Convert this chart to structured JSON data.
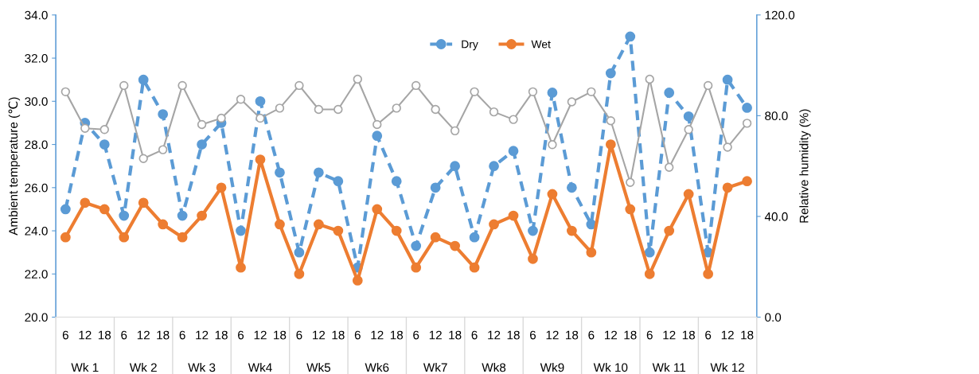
{
  "chart_data": {
    "type": "line",
    "ylabel": "Ambient temperature (℃)",
    "y2label": "Relative humidity (%)",
    "categories": [
      "6",
      "12",
      "18",
      "6",
      "12",
      "18",
      "6",
      "12",
      "18",
      "6",
      "12",
      "18",
      "6",
      "12",
      "18",
      "6",
      "12",
      "18",
      "6",
      "12",
      "18",
      "6",
      "12",
      "18",
      "6",
      "12",
      "18",
      "6",
      "12",
      "18",
      "6",
      "12",
      "18",
      "6",
      "12",
      "18"
    ],
    "annotations": [
      "Wk 1",
      "Wk 2",
      "Wk 3",
      "Wk4",
      "Wk5",
      "Wk6",
      "Wk7",
      "Wk8",
      "Wk9",
      "Wk 10",
      "Wk 11",
      "Wk 12"
    ],
    "ylim": [
      20,
      34
    ],
    "yticks": [
      {
        "value": 20,
        "label": "20.0"
      },
      {
        "value": 22,
        "label": "22.0"
      },
      {
        "value": 24,
        "label": "24.0"
      },
      {
        "value": 26,
        "label": "26.0"
      },
      {
        "value": 28,
        "label": "28.0"
      },
      {
        "value": 30,
        "label": "30.0"
      },
      {
        "value": 32,
        "label": "32.0"
      },
      {
        "value": 34,
        "label": "34.0"
      }
    ],
    "y2lim": [
      0,
      120
    ],
    "y2ticks": [
      {
        "value": 0,
        "label": "0.0"
      },
      {
        "value": 40,
        "label": "40.0"
      },
      {
        "value": 80,
        "label": "80.0"
      },
      {
        "value": 120,
        "label": "120.0"
      }
    ],
    "grid": false,
    "legend": "top",
    "marker": "circle",
    "series": [
      {
        "name": "Dry",
        "color": "#5b9bd5",
        "line_style": "dashed",
        "values": [
          25.0,
          29.0,
          28.0,
          24.7,
          31.0,
          29.4,
          24.7,
          28.0,
          29.0,
          24.0,
          30.0,
          26.7,
          23.0,
          26.7,
          26.3,
          22.3,
          28.4,
          26.3,
          23.3,
          26.0,
          27.0,
          23.7,
          27.0,
          27.7,
          24.0,
          30.4,
          26.0,
          24.3,
          31.3,
          33.0,
          23.0,
          30.4,
          29.3,
          23.0,
          31.0,
          29.7
        ]
      },
      {
        "name": "Wet",
        "color": "#ed7d31",
        "line_style": "solid",
        "values": [
          23.7,
          25.3,
          25.0,
          23.7,
          25.3,
          24.3,
          23.7,
          24.7,
          26.0,
          22.3,
          27.3,
          24.3,
          22.0,
          24.3,
          24.0,
          21.7,
          25.0,
          24.0,
          22.3,
          23.7,
          23.3,
          22.3,
          24.3,
          24.7,
          22.7,
          25.7,
          24.0,
          23.0,
          28.0,
          25.0,
          22.0,
          24.0,
          25.7,
          22.0,
          26.0,
          26.3
        ]
      },
      {
        "color": "#a5a5a5",
        "axis": "y2",
        "line_style": "solid",
        "values": [
          89.5,
          75.0,
          74.5,
          92.0,
          63.0,
          66.5,
          92.0,
          76.5,
          79.0,
          86.5,
          79.0,
          83.0,
          92.0,
          82.5,
          82.5,
          94.5,
          76.5,
          83.0,
          92.0,
          82.5,
          74.0,
          89.5,
          81.5,
          78.5,
          89.5,
          68.5,
          85.5,
          89.5,
          78.0,
          53.5,
          94.5,
          59.5,
          74.5,
          92.0,
          67.5,
          77.0
        ]
      }
    ]
  }
}
